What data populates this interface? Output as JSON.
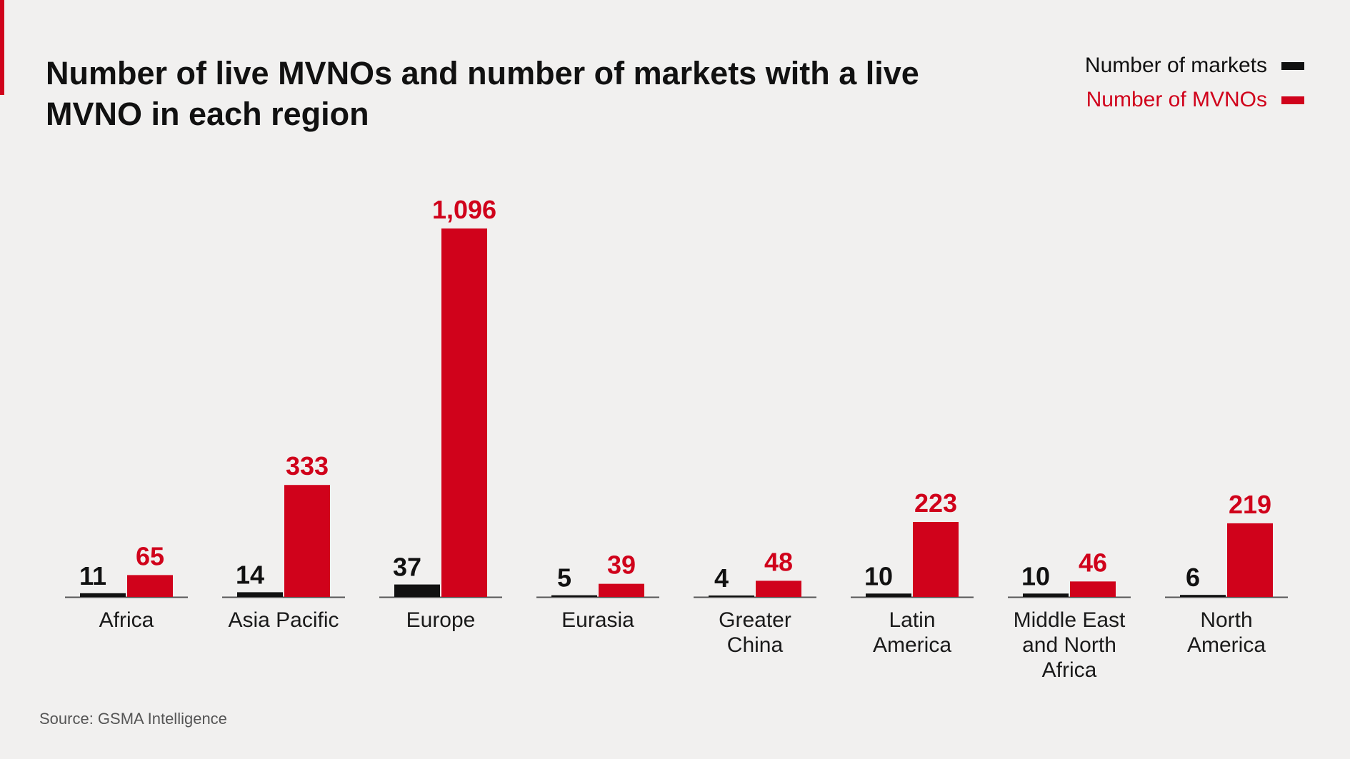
{
  "colors": {
    "markets": "#111111",
    "mvnos": "#d0021b",
    "accent": "#d0021b",
    "baseline": "#555555"
  },
  "chart_data": {
    "type": "bar",
    "title": "Number of live MVNOs and number of markets with a live MVNO in each region",
    "categories": [
      [
        "Africa"
      ],
      [
        "Asia Pacific"
      ],
      [
        "Europe"
      ],
      [
        "Eurasia"
      ],
      [
        "Greater",
        "China"
      ],
      [
        "Latin",
        "America"
      ],
      [
        "Middle East",
        "and North",
        "Africa"
      ],
      [
        "North",
        "America"
      ]
    ],
    "series": [
      {
        "name": "Number of markets",
        "color": "#111111",
        "values": [
          11,
          14,
          37,
          5,
          4,
          10,
          10,
          6
        ],
        "labels": [
          "11",
          "14",
          "37",
          "5",
          "4",
          "10",
          "10",
          "6"
        ]
      },
      {
        "name": "Number of MVNOs",
        "color": "#d0021b",
        "values": [
          65,
          333,
          1096,
          39,
          48,
          223,
          46,
          219
        ],
        "labels": [
          "65",
          "333",
          "1,096",
          "39",
          "48",
          "223",
          "46",
          "219"
        ]
      }
    ],
    "legend": "top-right",
    "grid": false,
    "source": "Source: GSMA Intelligence"
  }
}
